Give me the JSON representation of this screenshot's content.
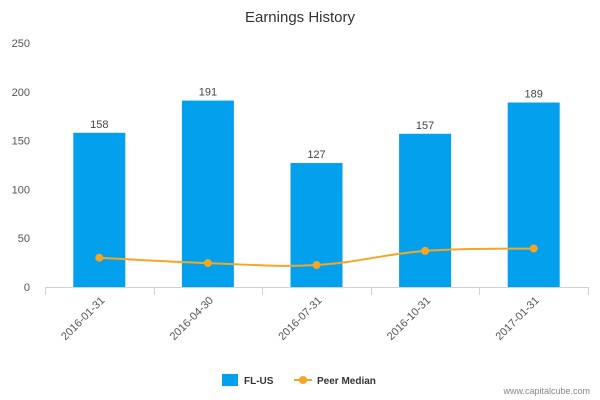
{
  "chart_data": {
    "type": "bar",
    "title": "Earnings History",
    "categories": [
      "2016-01-31",
      "2016-04-30",
      "2016-07-31",
      "2016-10-31",
      "2017-01-31"
    ],
    "series": [
      {
        "name": "FL-US",
        "kind": "bar",
        "color": "#03a0ee",
        "values": [
          158,
          191,
          127,
          157,
          189
        ],
        "data_labels": [
          "158",
          "191",
          "127",
          "157",
          "189"
        ]
      },
      {
        "name": "Peer Median",
        "kind": "line",
        "color": "#f5a623",
        "values": [
          30,
          24.5,
          22.5,
          37,
          39.5
        ]
      }
    ],
    "ylim": [
      0,
      250
    ],
    "yticks": [
      0,
      50,
      100,
      150,
      200,
      250
    ],
    "ytick_labels": [
      "0",
      "50",
      "100",
      "150",
      "200",
      "250"
    ],
    "xlabel": "",
    "ylabel": "",
    "grid": false,
    "legend_position": "bottom-center"
  },
  "credit": "www.capitalcube.com"
}
